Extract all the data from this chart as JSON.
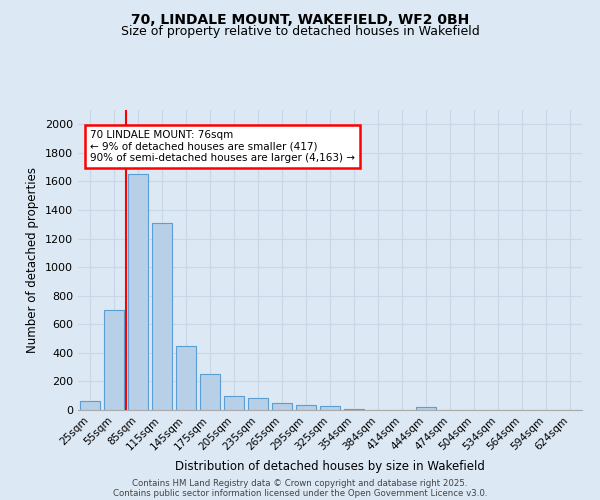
{
  "title_line1": "70, LINDALE MOUNT, WAKEFIELD, WF2 0BH",
  "title_line2": "Size of property relative to detached houses in Wakefield",
  "xlabel": "Distribution of detached houses by size in Wakefield",
  "ylabel": "Number of detached properties",
  "categories": [
    "25sqm",
    "55sqm",
    "85sqm",
    "115sqm",
    "145sqm",
    "175sqm",
    "205sqm",
    "235sqm",
    "265sqm",
    "295sqm",
    "325sqm",
    "354sqm",
    "384sqm",
    "414sqm",
    "444sqm",
    "474sqm",
    "504sqm",
    "534sqm",
    "564sqm",
    "594sqm",
    "624sqm"
  ],
  "values": [
    65,
    700,
    1650,
    1310,
    450,
    255,
    95,
    85,
    50,
    35,
    28,
    10,
    2,
    0,
    18,
    0,
    0,
    0,
    0,
    0,
    0
  ],
  "bar_color": "#b8cfe8",
  "bar_edge_color": "#5a9fd4",
  "annotation_text_line1": "70 LINDALE MOUNT: 76sqm",
  "annotation_text_line2": "← 9% of detached houses are smaller (417)",
  "annotation_text_line3": "90% of semi-detached houses are larger (4,163) →",
  "red_line_x": 1.5,
  "ylim": [
    0,
    2100
  ],
  "yticks": [
    0,
    200,
    400,
    600,
    800,
    1000,
    1200,
    1400,
    1600,
    1800,
    2000
  ],
  "grid_color": "#c8d8e8",
  "bg_color": "#dce8f4",
  "footer_line1": "Contains HM Land Registry data © Crown copyright and database right 2025.",
  "footer_line2": "Contains public sector information licensed under the Open Government Licence v3.0."
}
